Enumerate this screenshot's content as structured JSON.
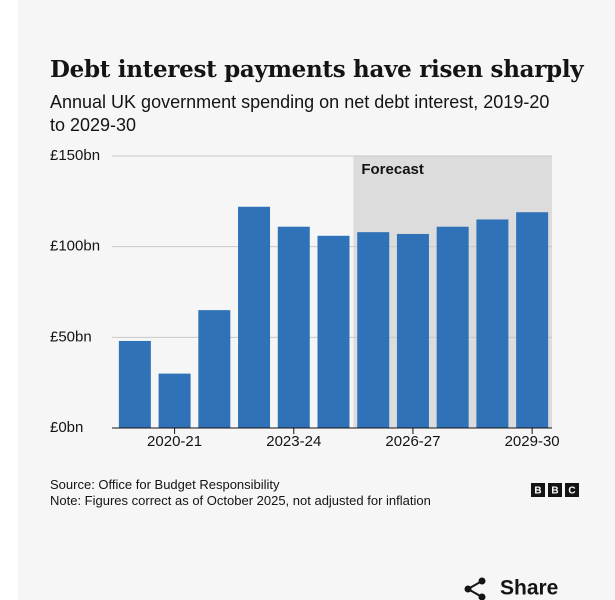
{
  "chart_data": {
    "type": "bar",
    "title": "Debt interest payments have risen sharply",
    "subtitle": "Annual UK government spending on net debt interest, 2019-20 to 2029-30",
    "categories": [
      null,
      "2020-21",
      null,
      null,
      "2023-24",
      null,
      null,
      "2026-27",
      null,
      null,
      "2029-30"
    ],
    "values": [
      48,
      30,
      65,
      122,
      111,
      106,
      108,
      107,
      111,
      115,
      119
    ],
    "color": "#3072b8",
    "ylim": [
      0,
      150
    ],
    "yticks": [
      {
        "value": 0,
        "label": "£0bn"
      },
      {
        "value": 50,
        "label": "£50bn"
      },
      {
        "value": 100,
        "label": "£100bn"
      },
      {
        "value": 150,
        "label": "£150bn"
      }
    ],
    "grid": true,
    "forecast": {
      "label": "Forecast",
      "start_index": 6
    },
    "source": "Source: Office for Budget Responsibility",
    "note": "Note: Figures correct as of October 2025, not adjusted for inflation"
  },
  "logo": [
    "B",
    "B",
    "C"
  ],
  "share": "Share"
}
